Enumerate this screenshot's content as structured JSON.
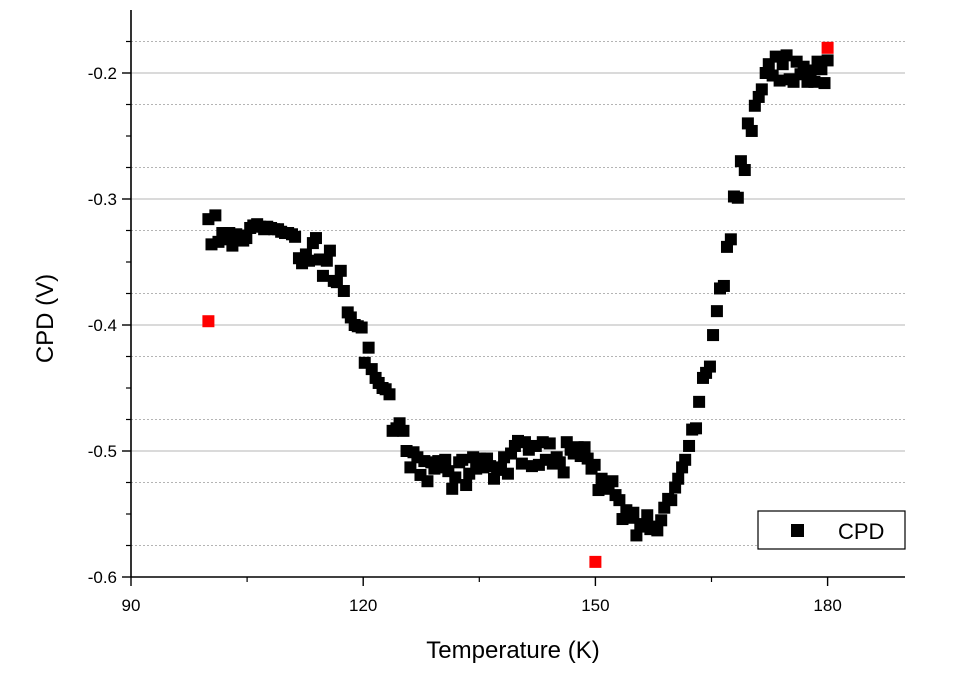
{
  "chart_data": {
    "type": "scatter",
    "xlabel": "Temperature (K)",
    "ylabel": "CPD (V)",
    "xlim": [
      90,
      190
    ],
    "ylim": [
      -0.6,
      -0.15
    ],
    "x_ticks": [
      {
        "value": 90,
        "label": "90"
      },
      {
        "value": 120,
        "label": "120"
      },
      {
        "value": 150,
        "label": "150"
      },
      {
        "value": 180,
        "label": "180"
      }
    ],
    "y_ticks": [
      {
        "value": -0.6,
        "label": "-0.6"
      },
      {
        "value": -0.5,
        "label": "-0.5"
      },
      {
        "value": -0.4,
        "label": "-0.4"
      },
      {
        "value": -0.3,
        "label": "-0.3"
      },
      {
        "value": -0.2,
        "label": "-0.2"
      }
    ],
    "grid": {
      "major_y": true,
      "minor_y": true
    },
    "legend": {
      "placement": "bottom-right",
      "entries": [
        "CPD"
      ]
    },
    "colors": {
      "series": "#000000",
      "highlight": "#ff0000",
      "grid": "#b4b4b4"
    },
    "series": [
      {
        "name": "CPD",
        "color": "#000000",
        "marker": "square",
        "points": [
          [
            100.0,
            -0.316
          ],
          [
            100.4,
            -0.336
          ],
          [
            100.9,
            -0.313
          ],
          [
            101.3,
            -0.334
          ],
          [
            101.8,
            -0.327
          ],
          [
            102.2,
            -0.332
          ],
          [
            102.7,
            -0.327
          ],
          [
            103.1,
            -0.337
          ],
          [
            103.6,
            -0.328
          ],
          [
            104.0,
            -0.329
          ],
          [
            104.5,
            -0.333
          ],
          [
            104.9,
            -0.331
          ],
          [
            105.4,
            -0.323
          ],
          [
            105.8,
            -0.321
          ],
          [
            106.3,
            -0.32
          ],
          [
            106.7,
            -0.322
          ],
          [
            107.2,
            -0.324
          ],
          [
            107.6,
            -0.322
          ],
          [
            108.1,
            -0.323
          ],
          [
            108.5,
            -0.324
          ],
          [
            109.0,
            -0.324
          ],
          [
            109.4,
            -0.326
          ],
          [
            109.9,
            -0.327
          ],
          [
            110.3,
            -0.327
          ],
          [
            110.8,
            -0.328
          ],
          [
            111.2,
            -0.33
          ],
          [
            111.7,
            -0.347
          ],
          [
            112.1,
            -0.351
          ],
          [
            112.6,
            -0.344
          ],
          [
            113.0,
            -0.349
          ],
          [
            113.5,
            -0.335
          ],
          [
            113.9,
            -0.331
          ],
          [
            114.4,
            -0.348
          ],
          [
            114.8,
            -0.361
          ],
          [
            115.3,
            -0.349
          ],
          [
            115.7,
            -0.341
          ],
          [
            116.2,
            -0.365
          ],
          [
            116.6,
            -0.366
          ],
          [
            117.1,
            -0.357
          ],
          [
            117.5,
            -0.373
          ],
          [
            118.0,
            -0.39
          ],
          [
            118.4,
            -0.394
          ],
          [
            118.9,
            -0.4
          ],
          [
            119.3,
            -0.401
          ],
          [
            119.8,
            -0.402
          ],
          [
            120.2,
            -0.43
          ],
          [
            120.7,
            -0.418
          ],
          [
            121.1,
            -0.435
          ],
          [
            121.6,
            -0.442
          ],
          [
            122.0,
            -0.446
          ],
          [
            122.5,
            -0.45
          ],
          [
            122.9,
            -0.451
          ],
          [
            123.4,
            -0.455
          ],
          [
            123.8,
            -0.484
          ],
          [
            124.3,
            -0.482
          ],
          [
            124.7,
            -0.478
          ],
          [
            125.2,
            -0.484
          ],
          [
            125.6,
            -0.5
          ],
          [
            126.1,
            -0.513
          ],
          [
            126.5,
            -0.501
          ],
          [
            127.0,
            -0.505
          ],
          [
            127.4,
            -0.519
          ],
          [
            127.9,
            -0.508
          ],
          [
            128.3,
            -0.524
          ],
          [
            128.8,
            -0.509
          ],
          [
            129.2,
            -0.514
          ],
          [
            129.7,
            -0.508
          ],
          [
            130.1,
            -0.513
          ],
          [
            130.6,
            -0.507
          ],
          [
            131.0,
            -0.516
          ],
          [
            131.5,
            -0.53
          ],
          [
            131.9,
            -0.521
          ],
          [
            132.4,
            -0.509
          ],
          [
            132.8,
            -0.507
          ],
          [
            133.3,
            -0.527
          ],
          [
            133.7,
            -0.518
          ],
          [
            134.2,
            -0.505
          ],
          [
            134.6,
            -0.514
          ],
          [
            135.1,
            -0.506
          ],
          [
            135.5,
            -0.513
          ],
          [
            136.0,
            -0.506
          ],
          [
            136.4,
            -0.512
          ],
          [
            136.9,
            -0.522
          ],
          [
            137.3,
            -0.515
          ],
          [
            137.8,
            -0.513
          ],
          [
            138.2,
            -0.505
          ],
          [
            138.7,
            -0.518
          ],
          [
            139.1,
            -0.502
          ],
          [
            139.6,
            -0.496
          ],
          [
            140.0,
            -0.492
          ],
          [
            140.5,
            -0.51
          ],
          [
            140.9,
            -0.493
          ],
          [
            141.4,
            -0.499
          ],
          [
            141.8,
            -0.512
          ],
          [
            142.3,
            -0.496
          ],
          [
            142.7,
            -0.511
          ],
          [
            143.2,
            -0.493
          ],
          [
            143.6,
            -0.507
          ],
          [
            144.1,
            -0.494
          ],
          [
            144.5,
            -0.51
          ],
          [
            145.0,
            -0.505
          ],
          [
            145.4,
            -0.509
          ],
          [
            145.9,
            -0.517
          ],
          [
            146.3,
            -0.493
          ],
          [
            146.8,
            -0.499
          ],
          [
            147.2,
            -0.502
          ],
          [
            147.7,
            -0.497
          ],
          [
            148.1,
            -0.504
          ],
          [
            148.6,
            -0.497
          ],
          [
            149.0,
            -0.506
          ],
          [
            149.5,
            -0.514
          ],
          [
            149.9,
            -0.511
          ],
          [
            150.4,
            -0.531
          ],
          [
            150.8,
            -0.522
          ],
          [
            151.3,
            -0.53
          ],
          [
            151.7,
            -0.526
          ],
          [
            152.2,
            -0.524
          ],
          [
            152.6,
            -0.535
          ],
          [
            153.1,
            -0.539
          ],
          [
            153.5,
            -0.554
          ],
          [
            154.0,
            -0.547
          ],
          [
            154.4,
            -0.553
          ],
          [
            154.9,
            -0.549
          ],
          [
            155.3,
            -0.567
          ],
          [
            155.8,
            -0.558
          ],
          [
            156.2,
            -0.56
          ],
          [
            156.7,
            -0.551
          ],
          [
            157.1,
            -0.562
          ],
          [
            157.6,
            -0.56
          ],
          [
            158.0,
            -0.563
          ],
          [
            158.5,
            -0.555
          ],
          [
            158.9,
            -0.545
          ],
          [
            159.4,
            -0.538
          ],
          [
            159.8,
            -0.539
          ],
          [
            160.3,
            -0.529
          ],
          [
            160.7,
            -0.522
          ],
          [
            161.2,
            -0.513
          ],
          [
            161.6,
            -0.507
          ],
          [
            162.1,
            -0.496
          ],
          [
            162.5,
            -0.483
          ],
          [
            163.0,
            -0.482
          ],
          [
            163.4,
            -0.461
          ],
          [
            163.9,
            -0.442
          ],
          [
            164.3,
            -0.438
          ],
          [
            164.8,
            -0.433
          ],
          [
            165.2,
            -0.408
          ],
          [
            165.7,
            -0.389
          ],
          [
            166.1,
            -0.371
          ],
          [
            166.6,
            -0.369
          ],
          [
            167.0,
            -0.338
          ],
          [
            167.5,
            -0.332
          ],
          [
            167.9,
            -0.298
          ],
          [
            168.4,
            -0.299
          ],
          [
            168.8,
            -0.27
          ],
          [
            169.3,
            -0.277
          ],
          [
            169.7,
            -0.24
          ],
          [
            170.2,
            -0.246
          ],
          [
            170.6,
            -0.226
          ],
          [
            171.1,
            -0.219
          ],
          [
            171.5,
            -0.213
          ],
          [
            172.0,
            -0.2
          ],
          [
            172.4,
            -0.193
          ],
          [
            172.9,
            -0.202
          ],
          [
            173.3,
            -0.187
          ],
          [
            173.8,
            -0.206
          ],
          [
            174.2,
            -0.193
          ],
          [
            174.7,
            -0.186
          ],
          [
            175.1,
            -0.205
          ],
          [
            175.6,
            -0.207
          ],
          [
            176.0,
            -0.191
          ],
          [
            176.5,
            -0.201
          ],
          [
            176.9,
            -0.195
          ],
          [
            177.4,
            -0.207
          ],
          [
            177.8,
            -0.198
          ],
          [
            178.3,
            -0.207
          ],
          [
            178.7,
            -0.191
          ],
          [
            179.2,
            -0.197
          ],
          [
            179.6,
            -0.208
          ],
          [
            180.0,
            -0.19
          ]
        ]
      },
      {
        "color": "#ff0000",
        "marker": "square",
        "points": [
          [
            100,
            -0.397
          ],
          [
            150,
            -0.588
          ],
          [
            180,
            -0.18
          ]
        ]
      }
    ]
  }
}
